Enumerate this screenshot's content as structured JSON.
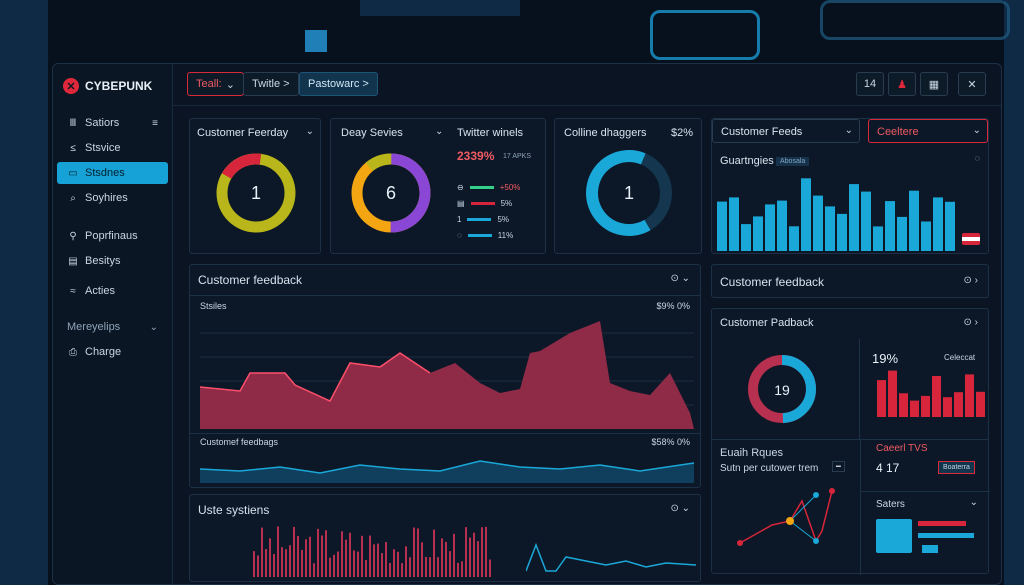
{
  "brand": {
    "name": "CYBEPUNK"
  },
  "sidebar": {
    "items": [
      {
        "icon": "Ⅲ",
        "label": "Satiors",
        "end": "≡"
      },
      {
        "icon": "≤",
        "label": "Stsvice"
      },
      {
        "icon": "▭",
        "label": "Stsdnes"
      },
      {
        "icon": "⌕",
        "label": "Soyhires"
      },
      {
        "icon": "⚲",
        "label": "Poprfinaus"
      },
      {
        "icon": "▤",
        "label": "Besitys"
      },
      {
        "icon": "≈",
        "label": "Acties"
      }
    ],
    "group_label": "Mereyelips",
    "bottom_item": {
      "icon": "⎙",
      "label": "Charge"
    }
  },
  "topbar": {
    "tab1": "Teall:",
    "tab2": "Twitle >",
    "tab3": "Pastowarc >",
    "count": "14"
  },
  "row1": {
    "p1": {
      "title": "Customer Feerday",
      "center": "1"
    },
    "p2": {
      "title": "Deay Sevies",
      "center": "6",
      "right_title": "Twitter winels",
      "big": "2339%",
      "big_suffix": "17 APKS",
      "rows": [
        {
          "icon": "⊖",
          "value": "+50%"
        },
        {
          "icon": "▤",
          "value": "5%"
        },
        {
          "icon": "1",
          "value": "5%"
        },
        {
          "icon": "◌",
          "value": "11%"
        }
      ]
    },
    "p3": {
      "title": "Colline dhaggers",
      "value": "$2%",
      "center": "1"
    },
    "p4": {
      "title": "Customer Feeds",
      "dropdown": "Ceeltere",
      "sub": "Guartngies",
      "badge": "Abosala"
    }
  },
  "feedback_chart": {
    "title": "Customer feedback",
    "series_label": "Stsiles",
    "value_label": "$9% 0%",
    "lower_label": "Customef feedbags",
    "lower_value": "$58% 0%"
  },
  "systems": {
    "title": "Uste systiens"
  },
  "right": {
    "feedback2": "Customer feedback",
    "feedback3": "Customer Padback",
    "donut_center": "19",
    "pct": "19%",
    "cat": "Celeccat",
    "ruqes": "Euaih Rques",
    "per_tem": "Sutn per cutower trem",
    "cat_tvs": "Caeerl TVS",
    "value_417": "4 17",
    "sm_btn": "Boaterra",
    "saters": "Saters"
  },
  "colors": {
    "red": "#b8304f",
    "cyan": "#1aa8d8",
    "yellow": "#b8b61a",
    "purple": "#8a47d6",
    "orange": "#f3a512"
  }
}
